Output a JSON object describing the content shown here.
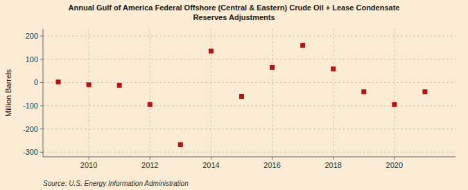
{
  "chart_data": {
    "type": "scatter",
    "title": "Annual Gulf of America Federal Offshore (Central & Eastern) Crude Oil + Lease Condensate\nReserves Adjustments",
    "y_label": "Million Barrels",
    "source": "Source: U.S. Energy Information Administration",
    "x": [
      2009,
      2010,
      2011,
      2012,
      2013,
      2014,
      2015,
      2016,
      2017,
      2018,
      2019,
      2020,
      2021
    ],
    "values": [
      2,
      -10,
      -12,
      -95,
      -268,
      135,
      -60,
      65,
      160,
      58,
      -40,
      -95,
      -40
    ],
    "color": "#bb1111",
    "marker": "square",
    "xlim": [
      2008.5,
      2022.0
    ],
    "ylim": [
      -320,
      230
    ],
    "xticks": [
      2010,
      2012,
      2014,
      2016,
      2018,
      2020
    ],
    "yticks": [
      -300,
      -200,
      -100,
      0,
      100,
      200
    ],
    "grid": true
  }
}
